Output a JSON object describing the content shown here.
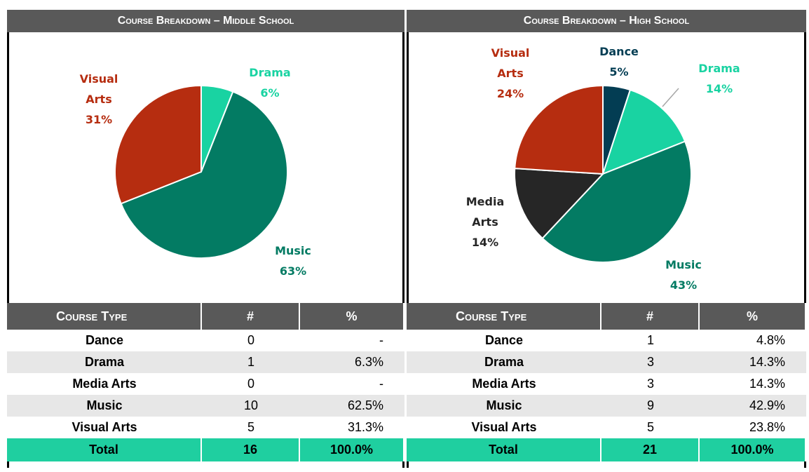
{
  "chart_data": [
    {
      "type": "pie",
      "title": "Course Breakdown – Middle School",
      "categories": [
        "Drama",
        "Music",
        "Visual Arts"
      ],
      "values": [
        6,
        63,
        31
      ],
      "value_labels": [
        "6%",
        "63%",
        "31%"
      ],
      "colors": [
        "#19d3a2",
        "#037b63",
        "#b62d10"
      ]
    },
    {
      "type": "pie",
      "title": "Course Breakdown – High School",
      "categories": [
        "Dance",
        "Drama",
        "Music",
        "Media Arts",
        "Visual Arts"
      ],
      "values": [
        5,
        14,
        43,
        14,
        24
      ],
      "value_labels": [
        "5%",
        "14%",
        "43%",
        "14%",
        "24%"
      ],
      "colors": [
        "#033d53",
        "#19d3a2",
        "#037b63",
        "#262626",
        "#b62d10"
      ]
    }
  ],
  "tables": [
    {
      "header": [
        "Course Type",
        "#",
        "%"
      ],
      "rows": [
        [
          "Dance",
          "0",
          "-"
        ],
        [
          "Drama",
          "1",
          "6.3%"
        ],
        [
          "Media Arts",
          "0",
          "-"
        ],
        [
          "Music",
          "10",
          "62.5%"
        ],
        [
          "Visual Arts",
          "5",
          "31.3%"
        ]
      ],
      "total": [
        "Total",
        "16",
        "100.0%"
      ]
    },
    {
      "header": [
        "Course Type",
        "#",
        "%"
      ],
      "rows": [
        [
          "Dance",
          "1",
          "4.8%"
        ],
        [
          "Drama",
          "3",
          "14.3%"
        ],
        [
          "Media Arts",
          "3",
          "14.3%"
        ],
        [
          "Music",
          "9",
          "42.9%"
        ],
        [
          "Visual Arts",
          "5",
          "23.8%"
        ]
      ],
      "total": [
        "Total",
        "21",
        "100.0%"
      ]
    }
  ]
}
